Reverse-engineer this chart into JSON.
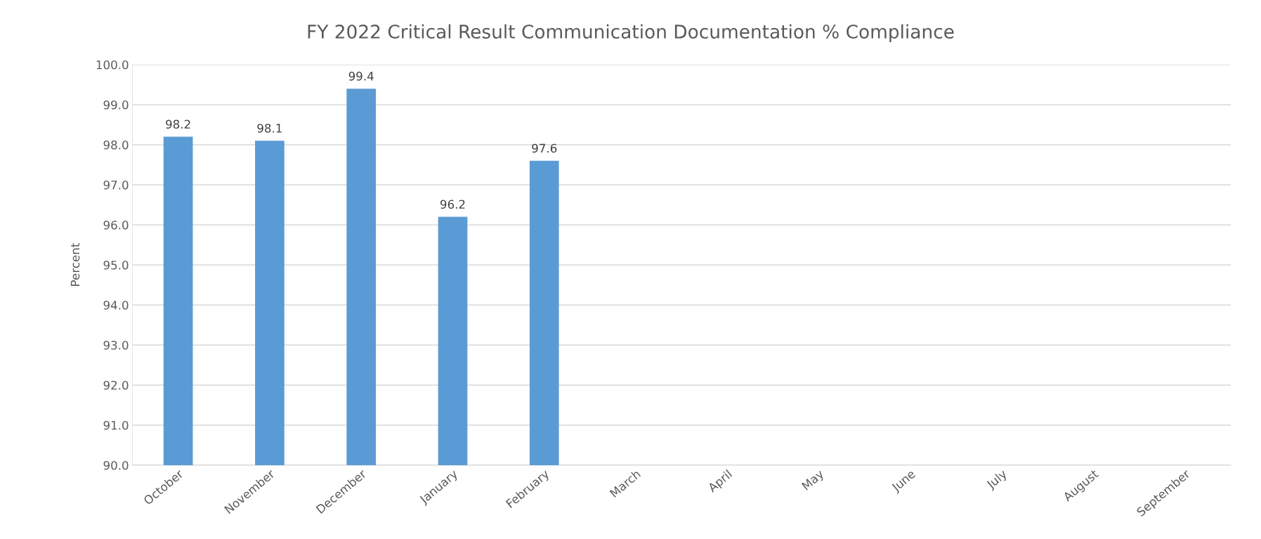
{
  "chart_data": {
    "type": "bar",
    "title": "FY 2022 Critical Result Communication Documentation % Compliance",
    "ylabel": "Percent",
    "categories": [
      "October",
      "November",
      "December",
      "January",
      "February",
      "March",
      "April",
      "May",
      "June",
      "July",
      "August",
      "September"
    ],
    "values": [
      98.2,
      98.1,
      99.4,
      96.2,
      97.6,
      null,
      null,
      null,
      null,
      null,
      null,
      null
    ],
    "color": "#5b9bd5",
    "data_labels": true,
    "grid": "y",
    "legend": false,
    "ylim": [
      90,
      100
    ],
    "yticks": [
      {
        "value": 90,
        "label": "90.0"
      },
      {
        "value": 91,
        "label": "91.0"
      },
      {
        "value": 92,
        "label": "92.0"
      },
      {
        "value": 93,
        "label": "93.0"
      },
      {
        "value": 94,
        "label": "94.0"
      },
      {
        "value": 95,
        "label": "95.0"
      },
      {
        "value": 96,
        "label": "96.0"
      },
      {
        "value": 97,
        "label": "97.0"
      },
      {
        "value": 98,
        "label": "98.0"
      },
      {
        "value": 99,
        "label": "99.0"
      },
      {
        "value": 100,
        "label": "100.0"
      }
    ]
  }
}
